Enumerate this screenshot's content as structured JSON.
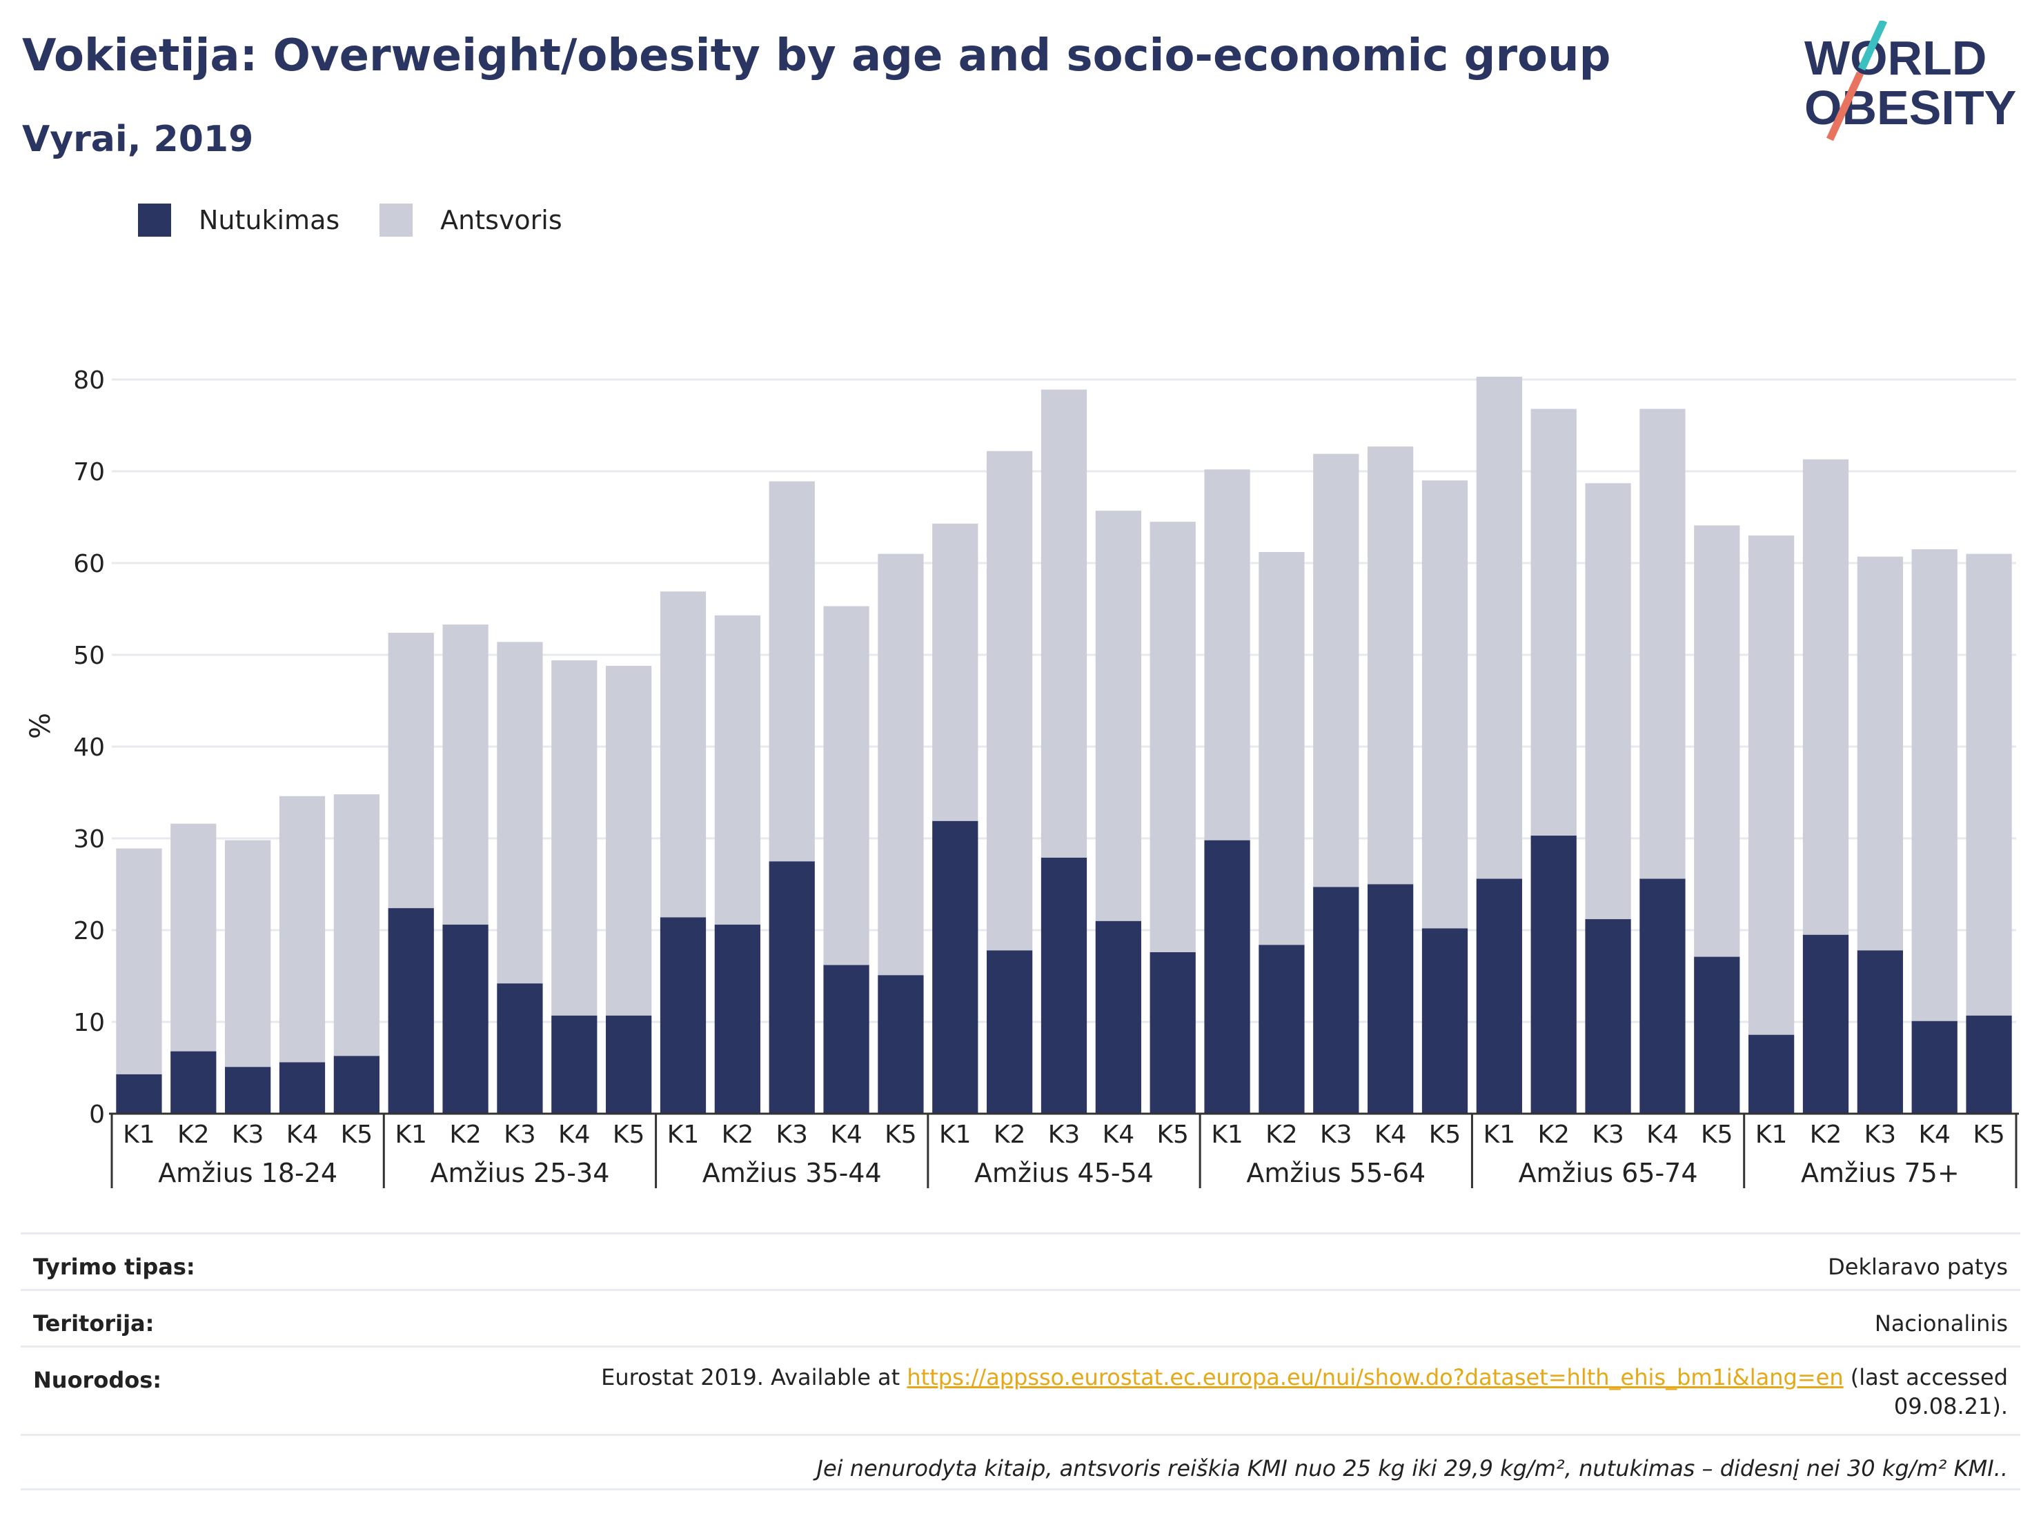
{
  "title": "Vokietija: Overweight/obesity by age and socio-economic group",
  "subtitle": "Vyrai, 2019",
  "logo": {
    "line1": "WORLD",
    "line2": "OBESITY"
  },
  "colors": {
    "obesity": "#2a3562",
    "overweight": "#cbcdd8",
    "title": "#2a3562",
    "link": "#e6a817"
  },
  "chart_data": {
    "type": "bar",
    "stacked": true,
    "title": "",
    "ylabel": "%",
    "ylim": [
      0,
      80
    ],
    "yticks": [
      0,
      10,
      20,
      30,
      40,
      50,
      60,
      70,
      80
    ],
    "grid": true,
    "legend_position": "top-left",
    "groups": [
      "Amžius 18-24",
      "Amžius 25-34",
      "Amžius 35-44",
      "Amžius 45-54",
      "Amžius 55-64",
      "Amžius 65-74",
      "Amžius 75+"
    ],
    "subcategories": [
      "K1",
      "K2",
      "K3",
      "K4",
      "K5"
    ],
    "series": [
      {
        "name": "Nutukimas",
        "color": "#2a3562",
        "values": [
          4.3,
          6.8,
          5.1,
          5.6,
          6.3,
          22.4,
          20.6,
          14.2,
          10.7,
          10.7,
          21.4,
          20.6,
          27.5,
          16.2,
          15.1,
          31.9,
          17.8,
          27.9,
          21.0,
          17.6,
          29.8,
          18.4,
          24.7,
          25.0,
          20.2,
          25.6,
          30.3,
          21.2,
          25.6,
          17.1,
          8.6,
          19.5,
          17.8,
          10.1,
          10.7
        ]
      },
      {
        "name": "Antsvoris",
        "color": "#cbcdd8",
        "values": [
          24.6,
          24.8,
          24.7,
          29.0,
          28.5,
          30.0,
          32.7,
          37.2,
          38.7,
          38.1,
          35.5,
          33.7,
          41.4,
          39.1,
          45.9,
          32.4,
          54.4,
          51.0,
          44.7,
          46.9,
          40.4,
          42.8,
          47.2,
          47.7,
          48.8,
          54.7,
          46.5,
          47.5,
          51.2,
          47.0,
          54.4,
          51.8,
          42.9,
          51.4,
          50.3
        ]
      }
    ]
  },
  "meta": {
    "survey_label": "Tyrimo tipas:",
    "survey_value": "Deklaravo patys",
    "territory_label": "Teritorija:",
    "territory_value": "Nacionalinis",
    "refs_label": "Nuorodos:",
    "refs_prefix": "Eurostat 2019. Available at",
    "refs_link": "https://appsso.eurostat.ec.europa.eu/nui/show.do?dataset=hlth_ehis_bm1i&lang=en",
    "refs_suffix": "(last accessed",
    "refs_date": "09.08.21).",
    "note": "Jei nenurodyta kitaip, antsvoris reiškia KMI nuo 25 kg iki 29,9 kg/m², nutukimas – didesnį nei 30 kg/m² KMI.."
  }
}
